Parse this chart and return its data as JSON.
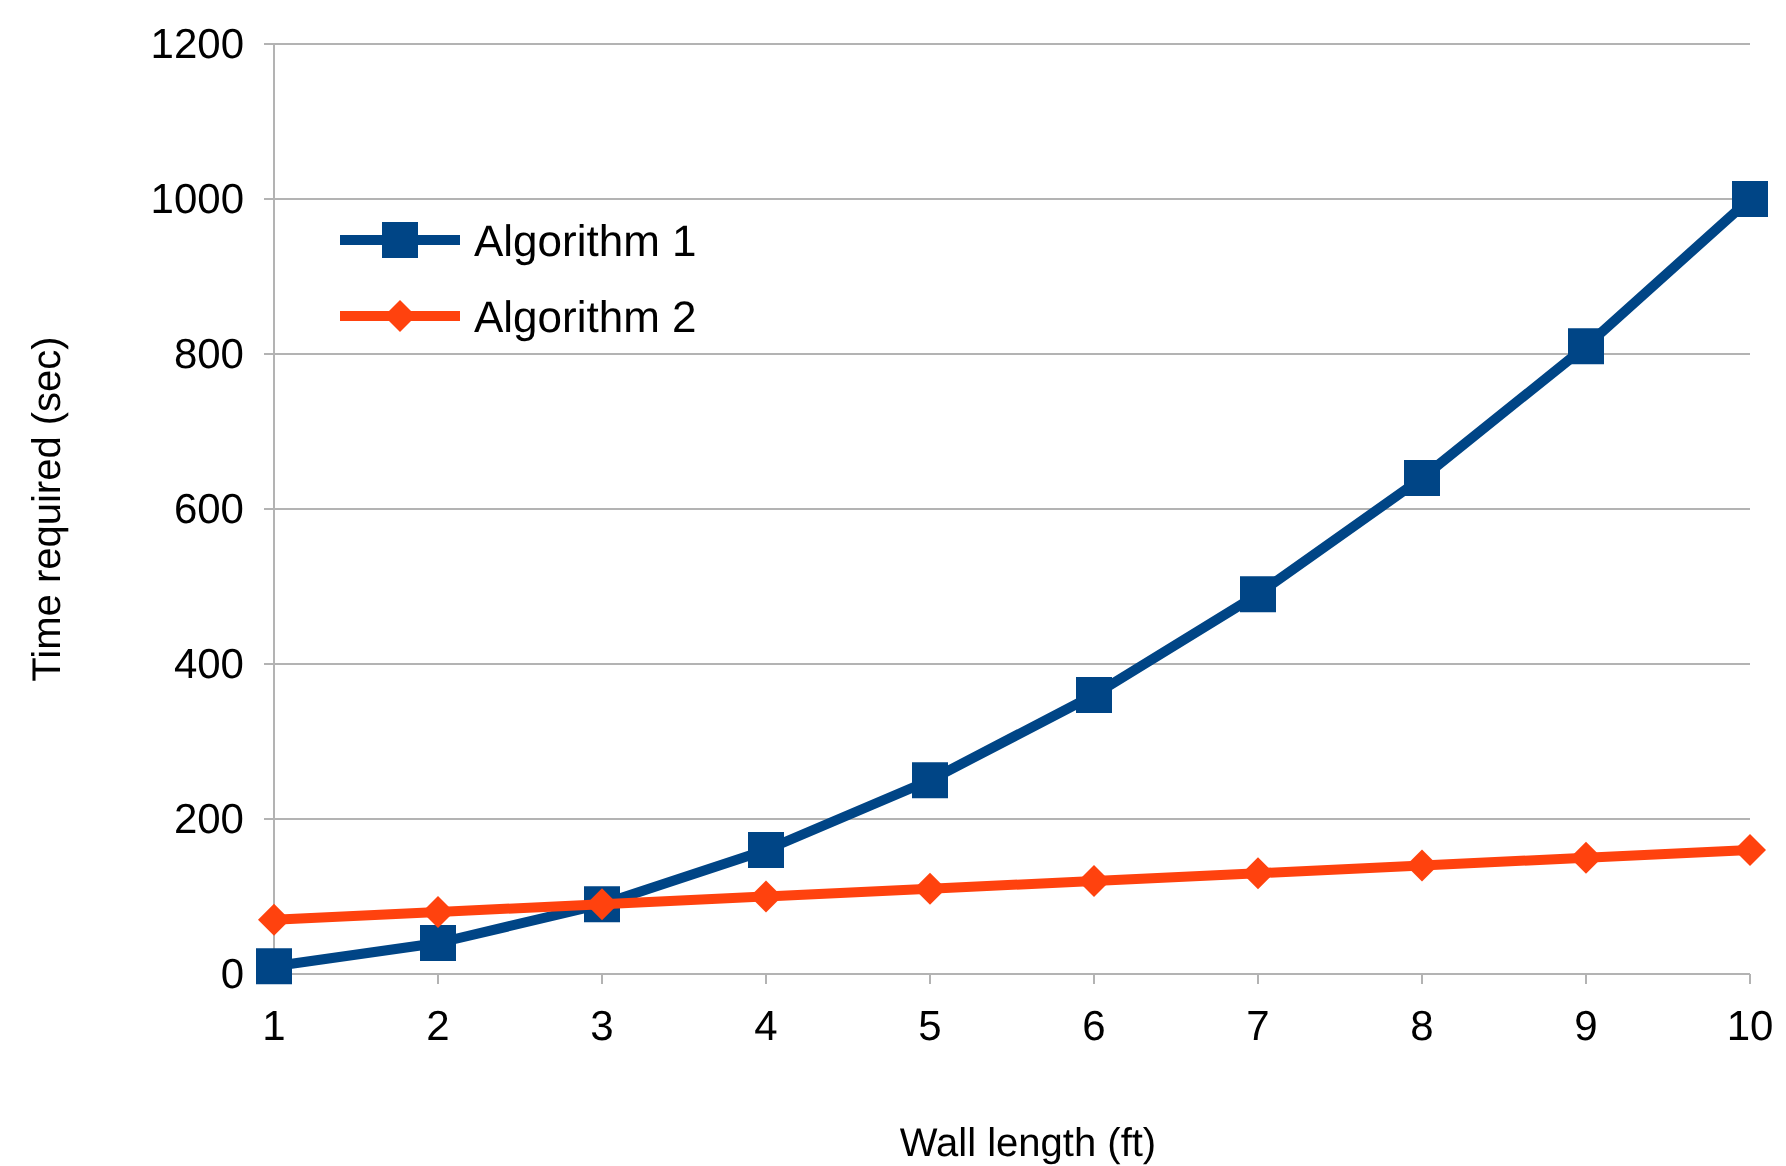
{
  "chart_data": {
    "type": "line",
    "xlabel": "Wall length (ft)",
    "ylabel": "Time required (sec)",
    "x": [
      1,
      2,
      3,
      4,
      5,
      6,
      7,
      8,
      9,
      10
    ],
    "series": [
      {
        "name": "Algorithm 1",
        "color": "#004586",
        "marker": "square",
        "values": [
          10,
          40,
          90,
          160,
          250,
          360,
          490,
          640,
          810,
          1000
        ]
      },
      {
        "name": "Algorithm 2",
        "color": "#ff420e",
        "marker": "diamond",
        "values": [
          70,
          80,
          90,
          100,
          110,
          120,
          130,
          140,
          150,
          160
        ]
      }
    ],
    "xlim": [
      1,
      10
    ],
    "xticks": [
      1,
      2,
      3,
      4,
      5,
      6,
      7,
      8,
      9,
      10
    ],
    "ylim": [
      0,
      1200
    ],
    "yticks": [
      0,
      200,
      400,
      600,
      800,
      1000,
      1200
    ],
    "grid": "y",
    "legend": "top left",
    "line_style": "solid"
  }
}
